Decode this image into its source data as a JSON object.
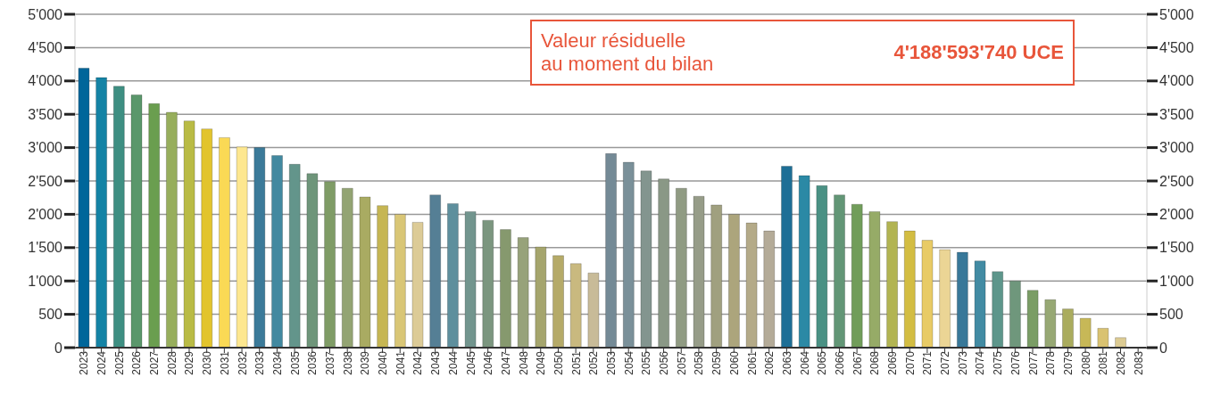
{
  "chart_data": {
    "type": "bar",
    "categories": [
      "2023",
      "2024",
      "2025",
      "2026",
      "2027",
      "2028",
      "2029",
      "2030",
      "2031",
      "2032",
      "2033",
      "2034",
      "2035",
      "2036",
      "2037",
      "2038",
      "2039",
      "2040",
      "2041",
      "2042",
      "2043",
      "2044",
      "2045",
      "2046",
      "2047",
      "2048",
      "2049",
      "2050",
      "2051",
      "2052",
      "2053",
      "2054",
      "2055",
      "2056",
      "2057",
      "2058",
      "2059",
      "2060",
      "2061",
      "2062",
      "2063",
      "2064",
      "2065",
      "2066",
      "2067",
      "2068",
      "2069",
      "2070",
      "2071",
      "2072",
      "2073",
      "2074",
      "2075",
      "2076",
      "2077",
      "2078",
      "2079",
      "2080",
      "2081",
      "2082",
      "2083"
    ],
    "values": [
      4190,
      4050,
      3920,
      3790,
      3660,
      3530,
      3400,
      3280,
      3150,
      3010,
      3000,
      2880,
      2750,
      2610,
      2490,
      2390,
      2260,
      2130,
      2000,
      1880,
      2290,
      2160,
      2040,
      1910,
      1770,
      1650,
      1510,
      1380,
      1260,
      1120,
      2910,
      2780,
      2650,
      2530,
      2390,
      2270,
      2140,
      2000,
      1870,
      1750,
      2720,
      2580,
      2430,
      2290,
      2150,
      2040,
      1890,
      1750,
      1610,
      1470,
      1430,
      1300,
      1140,
      1000,
      860,
      720,
      580,
      440,
      290,
      150,
      null
    ],
    "colors": [
      "#00669a",
      "#1483a5",
      "#3e8f82",
      "#5a976b",
      "#6a9e4f",
      "#97ae5c",
      "#b9bb45",
      "#e2c42c",
      "#fad955",
      "#fde78f",
      "#3b7a99",
      "#4289a0",
      "#63958b",
      "#6e957a",
      "#7f9c66",
      "#93a473",
      "#a9ab62",
      "#c6b653",
      "#d9c676",
      "#dccb97",
      "#557f95",
      "#5e8f9d",
      "#72958e",
      "#7b967f",
      "#86996e",
      "#97a27a",
      "#a5a56d",
      "#b5aa68",
      "#c9b97f",
      "#c8bb98",
      "#748a96",
      "#7a9099",
      "#83958f",
      "#8a9886",
      "#909b83",
      "#969c88",
      "#a0a07f",
      "#aca57c",
      "#b4aa88",
      "#b4ab98",
      "#1e6f96",
      "#2b89a5",
      "#4a9184",
      "#629676",
      "#719d5a",
      "#96ab67",
      "#b2b452",
      "#d3bd42",
      "#e8cb66",
      "#ebd595",
      "#387899",
      "#428ba3",
      "#5d968b",
      "#6f977c",
      "#7a9d65",
      "#97a874",
      "#aaac5e",
      "#c7b857",
      "#d9c271",
      "#dccb93",
      "#dccb93"
    ],
    "ylim": [
      0,
      5000
    ],
    "yticks": [
      0,
      500,
      {
        "value": 1000,
        "label": "1'000"
      },
      {
        "value": 1500,
        "label": "1'500"
      },
      {
        "value": 2000,
        "label": "2'000"
      },
      {
        "value": 2500,
        "label": "2'500"
      },
      {
        "value": 3000,
        "label": "3'000"
      },
      {
        "value": 3500,
        "label": "3'500"
      },
      {
        "value": 4000,
        "label": "4'000"
      },
      {
        "value": 4500,
        "label": "4'500"
      },
      {
        "value": 5000,
        "label": "5'000"
      }
    ],
    "y2lim": [
      0,
      5000
    ],
    "y2ticks": [
      0,
      500,
      {
        "value": 1000,
        "label": "1'000"
      },
      {
        "value": 1500,
        "label": "1'500"
      },
      {
        "value": 2000,
        "label": "2'000"
      },
      {
        "value": 2500,
        "label": "2'500"
      },
      {
        "value": 3000,
        "label": "3'000"
      },
      {
        "value": 3500,
        "label": "3'500"
      },
      {
        "value": 4000,
        "label": "4'000"
      },
      {
        "value": 4500,
        "label": "4'500"
      },
      {
        "value": 5000,
        "label": "5'000"
      }
    ],
    "grid": "y",
    "annotations": [
      "Valeur résiduelle\nau moment du bilan",
      "4'188'593'740 UCE"
    ]
  }
}
